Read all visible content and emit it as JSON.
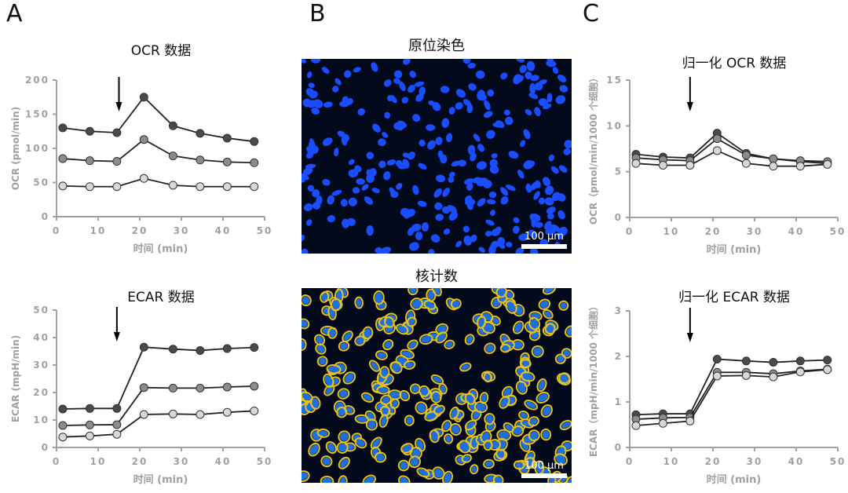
{
  "panels": {
    "a": "A",
    "b": "B",
    "c": "C"
  },
  "images": [
    {
      "title": "原位染色",
      "scale_label": "100 µm",
      "style": "nuclei"
    },
    {
      "title": "核计数",
      "scale_label": "100 µm",
      "style": "outlined"
    }
  ],
  "colors": {
    "dark": "#4a4a4a",
    "mid": "#8c8c8c",
    "light": "#d8d8d8",
    "axis": "#a0a0a0"
  },
  "chart_data": [
    {
      "type": "line",
      "title": "OCR 数据",
      "xlabel": "时间 (min)",
      "ylabel": "OCR (pmol/min)",
      "xlim": [
        0,
        50
      ],
      "ylim": [
        0,
        200
      ],
      "xticks": [
        0,
        10,
        20,
        30,
        40,
        50
      ],
      "yticks": [
        0,
        50,
        100,
        150,
        200
      ],
      "arrow_x": 15,
      "x": [
        1.5,
        8,
        14.5,
        21,
        28,
        34.5,
        41,
        47.5
      ],
      "series": [
        {
          "name": "dark",
          "values": [
            130,
            125,
            123,
            175,
            133,
            122,
            115,
            110
          ]
        },
        {
          "name": "mid",
          "values": [
            85,
            82,
            81,
            113,
            89,
            83,
            80,
            79
          ]
        },
        {
          "name": "light",
          "values": [
            45,
            44,
            44,
            56,
            46,
            44,
            44,
            44
          ]
        }
      ]
    },
    {
      "type": "line",
      "title": "ECAR 数据",
      "xlabel": "时间 (min)",
      "ylabel": "ECAR (mpH/min)",
      "xlim": [
        0,
        50
      ],
      "ylim": [
        0,
        50
      ],
      "xticks": [
        0,
        10,
        20,
        30,
        40,
        50
      ],
      "yticks": [
        0,
        10,
        20,
        30,
        40,
        50
      ],
      "arrow_x": 14.5,
      "x": [
        1.5,
        8,
        14.5,
        21,
        28,
        34.5,
        41,
        47.5
      ],
      "series": [
        {
          "name": "dark",
          "values": [
            14,
            14.2,
            14.2,
            36.5,
            35.8,
            35.3,
            36,
            36.4
          ]
        },
        {
          "name": "mid",
          "values": [
            8,
            8.2,
            8.3,
            21.8,
            21.6,
            21.6,
            22,
            22.3
          ]
        },
        {
          "name": "light",
          "values": [
            3.8,
            4.2,
            4.8,
            12,
            12.2,
            12,
            12.8,
            13.3
          ]
        }
      ]
    },
    {
      "type": "line",
      "title": "归一化 OCR 数据",
      "xlabel": "时间 (min)",
      "ylabel": "OCR（pmol/min/1000 个细胞）",
      "xlim": [
        0,
        50
      ],
      "ylim": [
        0,
        15
      ],
      "xticks": [
        0,
        10,
        20,
        30,
        40,
        50
      ],
      "yticks": [
        0,
        5,
        10,
        15
      ],
      "arrow_x": 14.5,
      "x": [
        1.5,
        8,
        14.5,
        21,
        28,
        34.5,
        41,
        47.5
      ],
      "series": [
        {
          "name": "dark",
          "values": [
            6.9,
            6.6,
            6.5,
            9.2,
            7.0,
            6.4,
            6.1,
            5.9
          ]
        },
        {
          "name": "mid",
          "values": [
            6.5,
            6.3,
            6.2,
            8.6,
            6.8,
            6.4,
            6.2,
            6.1
          ]
        },
        {
          "name": "light",
          "values": [
            5.9,
            5.7,
            5.7,
            7.3,
            5.9,
            5.6,
            5.6,
            5.8
          ]
        }
      ]
    },
    {
      "type": "line",
      "title": "归一化 ECAR 数据",
      "xlabel": "时间 (min)",
      "ylabel": "ECAR（mpH/min/1000 个细胞）",
      "xlim": [
        0,
        50
      ],
      "ylim": [
        0,
        3
      ],
      "xticks": [
        0,
        10,
        20,
        30,
        40,
        50
      ],
      "yticks": [
        0,
        1,
        2,
        3
      ],
      "arrow_x": 14.5,
      "x": [
        1.5,
        8,
        14.5,
        21,
        28,
        34.5,
        41,
        47.5
      ],
      "series": [
        {
          "name": "dark",
          "values": [
            0.72,
            0.74,
            0.74,
            1.94,
            1.9,
            1.87,
            1.9,
            1.92
          ]
        },
        {
          "name": "mid",
          "values": [
            0.62,
            0.65,
            0.66,
            1.65,
            1.65,
            1.62,
            1.68,
            1.72
          ]
        },
        {
          "name": "light",
          "values": [
            0.48,
            0.53,
            0.58,
            1.57,
            1.58,
            1.55,
            1.66,
            1.71
          ]
        }
      ]
    }
  ]
}
